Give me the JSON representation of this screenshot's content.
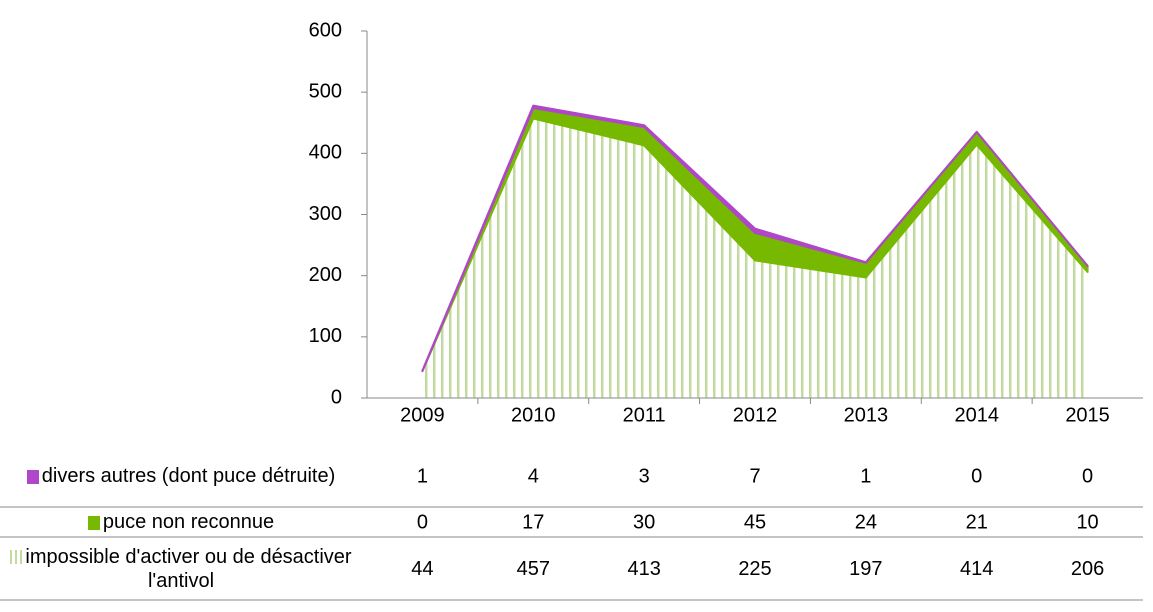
{
  "chart_data": {
    "type": "stacked_area",
    "categories": [
      "2009",
      "2010",
      "2011",
      "2012",
      "2013",
      "2014",
      "2015"
    ],
    "series": [
      {
        "name": "divers autres (dont puce détruite)",
        "color": "#b046c8",
        "values": [
          1,
          4,
          3,
          7,
          1,
          0,
          0
        ]
      },
      {
        "name": "puce non reconnue",
        "color": "#76b900",
        "values": [
          0,
          17,
          30,
          45,
          24,
          21,
          10
        ]
      },
      {
        "name": "impossible d'activer ou de désactiver l'antivol",
        "color": "#c4dba0",
        "hatched": true,
        "values": [
          44,
          457,
          413,
          225,
          197,
          414,
          206
        ]
      }
    ],
    "ylim": [
      0,
      600
    ],
    "yticks": [
      0,
      100,
      200,
      300,
      400,
      500,
      600
    ]
  }
}
